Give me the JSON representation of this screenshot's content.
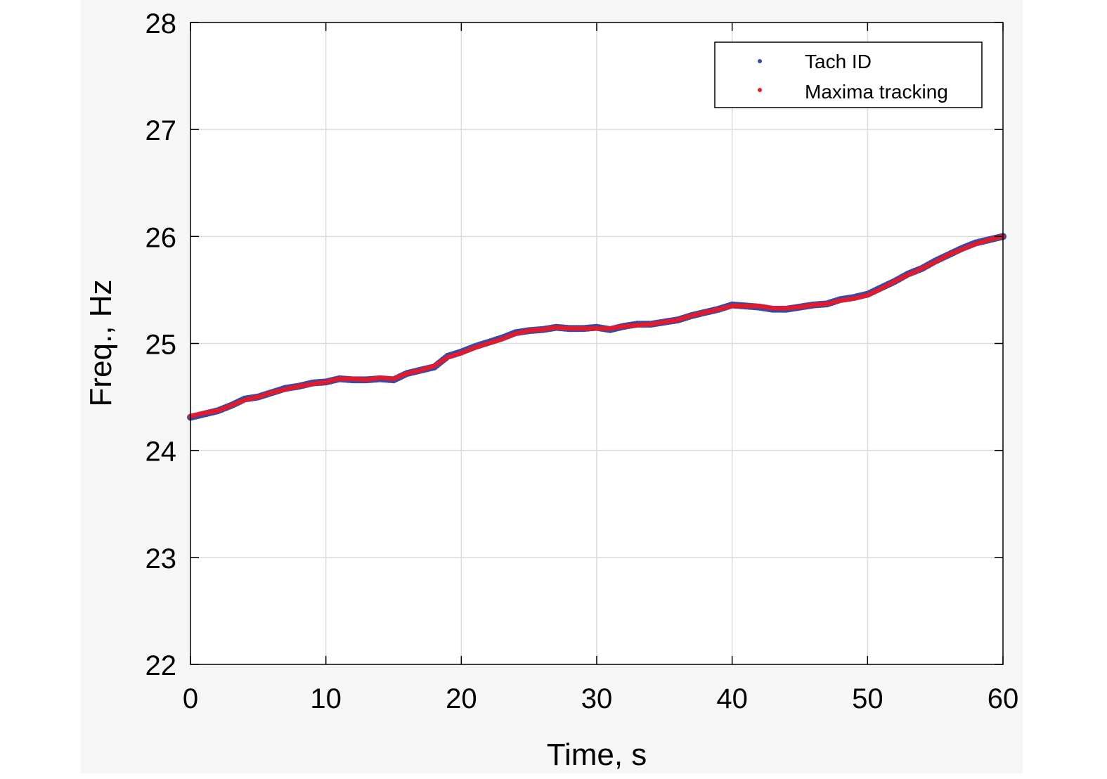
{
  "chart_data": {
    "type": "scatter",
    "title": "",
    "xlabel": "Time, s",
    "ylabel": "Freq., Hz",
    "xlim": [
      0,
      60
    ],
    "ylim": [
      22,
      28
    ],
    "xticks": [
      0,
      10,
      20,
      30,
      40,
      50,
      60
    ],
    "yticks": [
      22,
      23,
      24,
      25,
      26,
      27,
      28
    ],
    "xtick_labels": [
      "0",
      "10",
      "20",
      "30",
      "40",
      "50",
      "60"
    ],
    "ytick_labels": [
      "22",
      "23",
      "24",
      "25",
      "26",
      "27",
      "28"
    ],
    "grid": true,
    "legend_position": "top-right",
    "series": [
      {
        "name": "Tach ID",
        "color": "#3b4aa0",
        "marker": "dot",
        "x": [
          0,
          1,
          2,
          3,
          4,
          5,
          6,
          7,
          8,
          9,
          10,
          11,
          12,
          13,
          14,
          15,
          16,
          17,
          18,
          19,
          20,
          21,
          22,
          23,
          24,
          25,
          26,
          27,
          28,
          29,
          30,
          31,
          32,
          33,
          34,
          35,
          36,
          37,
          38,
          39,
          40,
          41,
          42,
          43,
          44,
          45,
          46,
          47,
          48,
          49,
          50,
          51,
          52,
          53,
          54,
          55,
          56,
          57,
          58,
          59,
          60
        ],
        "y": [
          24.31,
          24.34,
          24.37,
          24.42,
          24.48,
          24.5,
          24.54,
          24.58,
          24.6,
          24.63,
          24.64,
          24.67,
          24.66,
          24.66,
          24.67,
          24.66,
          24.72,
          24.75,
          24.78,
          24.88,
          24.92,
          24.97,
          25.01,
          25.05,
          25.1,
          25.12,
          25.13,
          25.15,
          25.14,
          25.14,
          25.15,
          25.13,
          25.16,
          25.18,
          25.18,
          25.2,
          25.22,
          25.26,
          25.29,
          25.32,
          25.36,
          25.35,
          25.34,
          25.32,
          25.32,
          25.34,
          25.36,
          25.37,
          25.41,
          25.43,
          25.46,
          25.52,
          25.58,
          25.65,
          25.7,
          25.77,
          25.83,
          25.89,
          25.94,
          25.97,
          26.0
        ]
      },
      {
        "name": "Maxima tracking",
        "color": "#e41a2c",
        "marker": "dot",
        "x": [
          0,
          1,
          2,
          3,
          4,
          5,
          6,
          7,
          8,
          9,
          10,
          11,
          12,
          13,
          14,
          15,
          16,
          17,
          18,
          19,
          20,
          21,
          22,
          23,
          24,
          25,
          26,
          27,
          28,
          29,
          30,
          31,
          32,
          33,
          34,
          35,
          36,
          37,
          38,
          39,
          40,
          41,
          42,
          43,
          44,
          45,
          46,
          47,
          48,
          49,
          50,
          51,
          52,
          53,
          54,
          55,
          56,
          57,
          58,
          59,
          60
        ],
        "y": [
          24.32,
          24.35,
          24.37,
          24.42,
          24.47,
          24.5,
          24.54,
          24.57,
          24.6,
          24.62,
          24.64,
          24.67,
          24.67,
          24.66,
          24.68,
          24.67,
          24.72,
          24.75,
          24.79,
          24.87,
          24.91,
          24.96,
          25.0,
          25.04,
          25.09,
          25.12,
          25.13,
          25.15,
          25.14,
          25.14,
          25.14,
          25.14,
          25.16,
          25.17,
          25.18,
          25.2,
          25.22,
          25.26,
          25.29,
          25.32,
          25.35,
          25.35,
          25.35,
          25.33,
          25.33,
          25.34,
          25.36,
          25.37,
          25.4,
          25.42,
          25.45,
          25.51,
          25.58,
          25.64,
          25.7,
          25.76,
          25.83,
          25.88,
          25.93,
          25.97,
          26.0
        ]
      }
    ]
  }
}
